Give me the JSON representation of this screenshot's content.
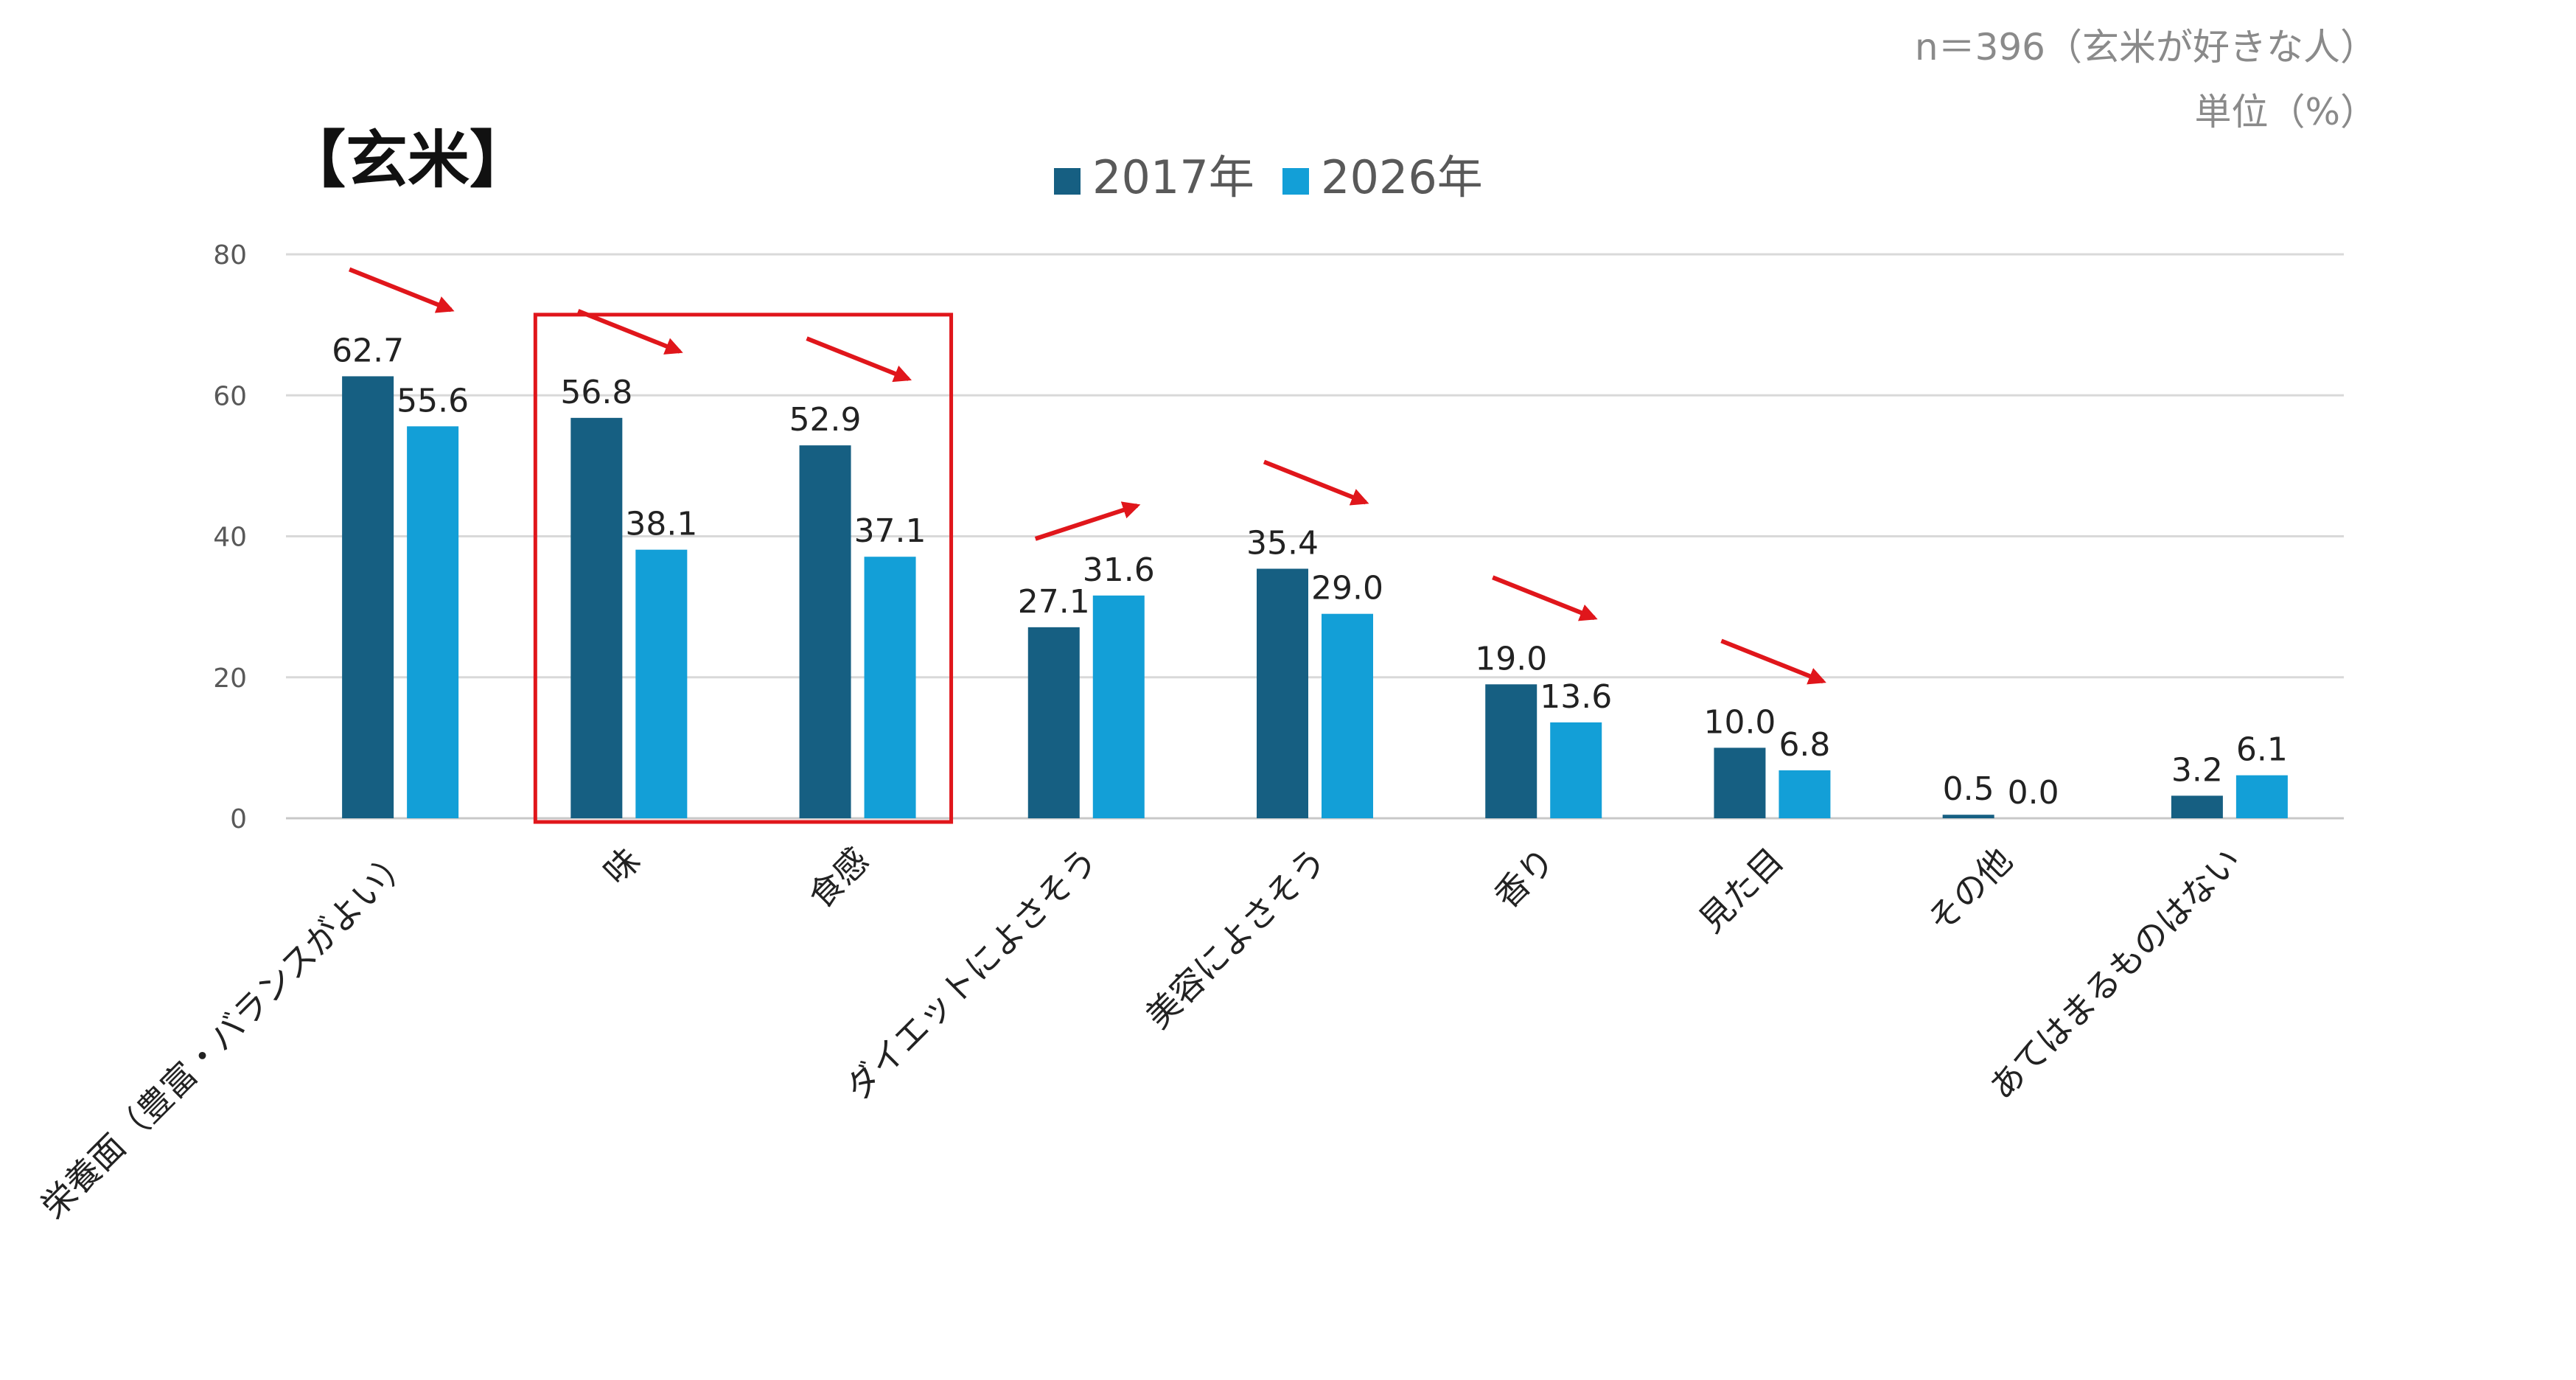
{
  "chart_data": {
    "type": "bar",
    "title": "【玄米】",
    "note_lines": [
      "n＝396（玄米が好きな人）",
      "単位（%）"
    ],
    "categories": [
      "栄養面（豊富・バランスがよい）",
      "味",
      "食感",
      "ダイエットによさそう",
      "美容によさそう",
      "香り",
      "見た目",
      "その他",
      "あてはまるものはない"
    ],
    "series": [
      {
        "name": "2017年",
        "color": "#165F82",
        "values": [
          62.7,
          56.8,
          52.9,
          27.1,
          35.4,
          19.0,
          10.0,
          0.5,
          3.2
        ]
      },
      {
        "name": "2026年",
        "color": "#139FD7",
        "values": [
          55.6,
          38.1,
          37.1,
          31.6,
          29.0,
          13.6,
          6.8,
          0.0,
          6.1
        ]
      }
    ],
    "value_labels": [
      [
        "62.7",
        "56.8",
        "52.9",
        "27.1",
        "35.4",
        "19.0",
        "10.0",
        "0.5",
        "3.2"
      ],
      [
        "55.6",
        "38.1",
        "37.1",
        "31.6",
        "29.0",
        "13.6",
        "6.8",
        "0.0",
        "6.1"
      ]
    ],
    "y_ticks": [
      "0",
      "20",
      "40",
      "60",
      "80"
    ],
    "ylim": [
      0,
      80
    ],
    "grid": true,
    "legend_position": "top-center",
    "highlight_categories": [
      "味",
      "食感"
    ],
    "highlight_color": "#E0161B",
    "trend_arrows": [
      "down",
      "down",
      "down",
      "up",
      "down",
      "down",
      "down",
      "",
      ""
    ],
    "arrow_color": "#E0161B"
  }
}
